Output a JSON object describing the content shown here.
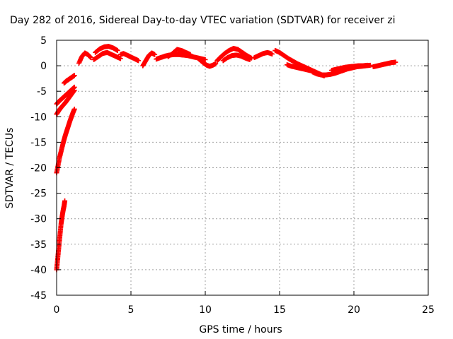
{
  "chart_data": {
    "type": "scatter",
    "title": "Day 282 of 2016, Sidereal Day-to-day VTEC variation (SDTVAR) for receiver zi",
    "xlabel": "GPS time / hours",
    "ylabel": "SDTVAR / TECUs",
    "xlim": [
      0,
      25
    ],
    "ylim": [
      -45,
      5
    ],
    "xticks": [
      0,
      5,
      10,
      15,
      20,
      25
    ],
    "yticks": [
      -45,
      -40,
      -35,
      -30,
      -25,
      -20,
      -15,
      -10,
      -5,
      0,
      5
    ],
    "grid": true,
    "legend": "none",
    "marker": "plus",
    "color": "#ff0000",
    "series": [
      {
        "tracks": [
          {
            "x": [
              0.0,
              0.05,
              0.1,
              0.15,
              0.2,
              0.25,
              0.3,
              0.35,
              0.4,
              0.45,
              0.5,
              0.55
            ],
            "y": [
              -40.0,
              -38.5,
              -37.0,
              -35.5,
              -34.0,
              -32.5,
              -31.0,
              -30.0,
              -29.0,
              -28.2,
              -27.5,
              -26.5
            ]
          },
          {
            "x": [
              0.0,
              0.1,
              0.2,
              0.3,
              0.4,
              0.5,
              0.6,
              0.7,
              0.8,
              0.9,
              1.0,
              1.1,
              1.2
            ],
            "y": [
              -21.0,
              -19.5,
              -18.0,
              -16.8,
              -15.6,
              -14.5,
              -13.5,
              -12.6,
              -11.7,
              -10.8,
              -10.0,
              -9.2,
              -8.5
            ]
          },
          {
            "x": [
              0.0,
              0.15,
              0.3,
              0.45,
              0.6,
              0.75,
              0.9,
              1.05,
              1.2
            ],
            "y": [
              -9.5,
              -8.8,
              -8.2,
              -7.7,
              -7.2,
              -6.6,
              -6.0,
              -5.4,
              -4.8
            ]
          },
          {
            "x": [
              0.0,
              0.15,
              0.3,
              0.45,
              0.6,
              0.75,
              0.9,
              1.05,
              1.2
            ],
            "y": [
              -7.5,
              -7.0,
              -6.6,
              -6.2,
              -5.8,
              -5.4,
              -5.0,
              -4.6,
              -4.2
            ]
          },
          {
            "x": [
              0.5,
              0.65,
              0.8,
              0.95,
              1.1,
              1.2
            ],
            "y": [
              -3.4,
              -3.0,
              -2.7,
              -2.4,
              -2.1,
              -1.9
            ]
          },
          {
            "x": [
              1.5,
              1.7,
              1.9,
              2.1,
              2.3
            ],
            "y": [
              0.5,
              1.8,
              2.5,
              2.2,
              1.6
            ]
          },
          {
            "x": [
              2.5,
              2.8,
              3.1,
              3.4,
              3.7,
              4.0,
              4.3
            ],
            "y": [
              1.2,
              1.8,
              2.4,
              2.6,
              2.2,
              1.8,
              1.4
            ]
          },
          {
            "x": [
              2.6,
              2.9,
              3.2,
              3.5,
              3.8,
              4.1
            ],
            "y": [
              2.6,
              3.3,
              3.7,
              3.8,
              3.5,
              3.0
            ]
          },
          {
            "x": [
              4.3,
              4.5,
              4.8,
              5.0,
              5.3,
              5.5
            ],
            "y": [
              2.2,
              2.4,
              2.0,
              1.7,
              1.3,
              1.0
            ]
          },
          {
            "x": [
              5.8,
              6.0,
              6.2,
              6.4,
              6.6
            ],
            "y": [
              0.0,
              1.0,
              2.0,
              2.5,
              2.2
            ]
          },
          {
            "x": [
              6.7,
              7.0,
              7.3,
              7.6,
              7.9,
              8.2,
              8.5,
              8.8,
              9.1,
              9.4,
              9.7,
              10.0
            ],
            "y": [
              1.3,
              1.6,
              1.9,
              2.1,
              2.2,
              2.2,
              2.1,
              2.0,
              1.8,
              1.6,
              1.4,
              1.2
            ]
          },
          {
            "x": [
              7.5,
              7.8,
              8.1,
              8.4,
              8.7,
              9.0
            ],
            "y": [
              1.8,
              2.4,
              3.2,
              3.0,
              2.6,
              2.2
            ]
          },
          {
            "x": [
              9.5,
              9.7,
              9.9,
              10.1,
              10.3,
              10.5,
              10.7
            ],
            "y": [
              1.5,
              1.0,
              0.5,
              0.1,
              -0.1,
              0.1,
              0.4
            ]
          },
          {
            "x": [
              10.8,
              11.0,
              11.3,
              11.6,
              11.9,
              12.2,
              12.5,
              12.8,
              13.1
            ],
            "y": [
              1.0,
              1.6,
              2.4,
              3.0,
              3.4,
              3.2,
              2.6,
              2.0,
              1.5
            ]
          },
          {
            "x": [
              11.2,
              11.5,
              11.8,
              12.1,
              12.4,
              12.7,
              13.0
            ],
            "y": [
              1.0,
              1.6,
              2.0,
              2.1,
              1.9,
              1.5,
              1.2
            ]
          },
          {
            "x": [
              13.3,
              13.6,
              13.9,
              14.2,
              14.5
            ],
            "y": [
              1.6,
              2.0,
              2.4,
              2.6,
              2.3
            ]
          },
          {
            "x": [
              14.7,
              15.0,
              15.3,
              15.6,
              15.9,
              16.2,
              16.5,
              16.8,
              17.1,
              17.4,
              17.7,
              18.0
            ],
            "y": [
              3.0,
              2.6,
              2.0,
              1.4,
              0.9,
              0.4,
              0.0,
              -0.4,
              -0.8,
              -1.2,
              -1.6,
              -2.0
            ]
          },
          {
            "x": [
              15.5,
              15.8,
              16.1,
              16.4,
              16.7,
              17.0,
              17.3
            ],
            "y": [
              0.2,
              -0.1,
              -0.3,
              -0.5,
              -0.7,
              -0.9,
              -1.1
            ]
          },
          {
            "x": [
              17.2,
              17.5,
              17.8,
              18.1,
              18.4,
              18.7,
              19.0,
              19.3,
              19.6,
              19.9,
              20.2,
              20.5,
              20.8,
              21.1
            ],
            "y": [
              -1.2,
              -1.6,
              -1.8,
              -1.8,
              -1.7,
              -1.5,
              -1.2,
              -0.9,
              -0.6,
              -0.4,
              -0.2,
              -0.1,
              0.0,
              0.1
            ]
          },
          {
            "x": [
              18.5,
              18.8,
              19.1,
              19.4,
              19.7,
              20.0,
              20.3,
              20.6,
              20.9
            ],
            "y": [
              -0.9,
              -0.7,
              -0.5,
              -0.3,
              -0.2,
              -0.1,
              0.0,
              0.0,
              0.1
            ]
          },
          {
            "x": [
              21.3,
              21.6,
              21.9,
              22.2,
              22.5,
              22.8
            ],
            "y": [
              -0.2,
              0.0,
              0.2,
              0.4,
              0.6,
              0.7
            ]
          }
        ]
      }
    ]
  }
}
